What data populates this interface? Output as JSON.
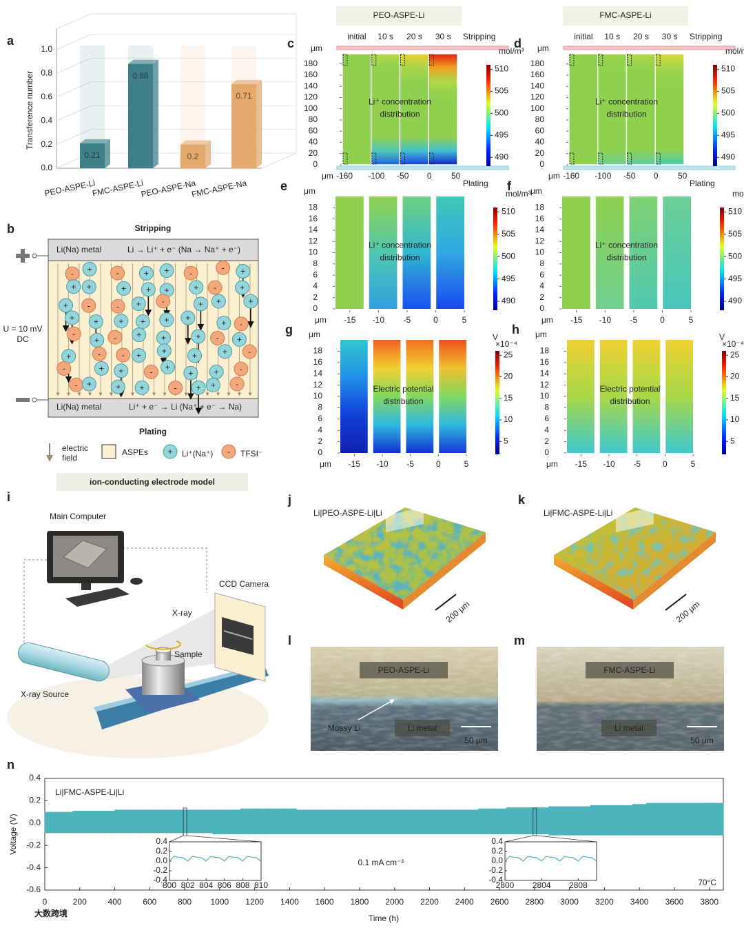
{
  "panel_a": {
    "label": "a",
    "type": "bar",
    "y_label": "Transference number",
    "categories": [
      "PEO-ASPE-Li",
      "FMC-ASPE-Li",
      "PEO-ASPE-Na",
      "FMC-ASPE-Na"
    ],
    "values": [
      0.21,
      0.88,
      0.2,
      0.71
    ],
    "colors": [
      "#3f8088",
      "#3f8088",
      "#e4a86c",
      "#e4a86c"
    ],
    "ylim": [
      0,
      1
    ],
    "yticks": [
      {
        "value": 0,
        "label": "0.0"
      },
      0.2,
      0.4,
      0.6,
      0.8,
      {
        "value": 1,
        "label": "1.0"
      }
    ]
  },
  "panel_b": {
    "label": "b",
    "stripping": "Stripping",
    "plating": "Plating",
    "top_electrode": "Li(Na) metal",
    "top_reaction": "Li → Li⁺ + e⁻ (Na → Na⁺ + e⁻)",
    "bottom_electrode": "Li(Na) metal",
    "bottom_reaction": "Li⁺ + e⁻ → Li (Na⁺ + e⁻ → Na)",
    "voltage": "U = 10 mV",
    "dc": "DC",
    "cation_sign": "+",
    "anion_sign": "-",
    "legend_field": [
      "electric",
      "field"
    ],
    "legend_aspe": "ASPEs",
    "legend_cation": "Li⁺(Na⁺)",
    "legend_anion": "TFSI⁻",
    "caption": "ion-conducting electrode model"
  },
  "maps": {
    "columns": [
      "PEO-ASPE-Li",
      "FMC-ASPE-Li"
    ],
    "times": [
      "initial",
      "10 s",
      "20 s",
      "30 s"
    ],
    "stripping": "Stripping",
    "plating": "Plating",
    "unit": "μm",
    "rows": [
      {
        "label": [
          "Li⁺ concentration",
          "distribution"
        ],
        "cbar_unit": "mol/m³",
        "cbar_lim": [
          488,
          511
        ],
        "cbar_ticks": [
          490,
          495,
          500,
          505,
          510
        ],
        "xlim": [
          -164,
          53
        ],
        "xticks": [
          -160,
          -100,
          -50,
          0,
          50
        ],
        "ylim": [
          0,
          198
        ],
        "yticks": [
          0,
          20,
          40,
          60,
          80,
          100,
          120,
          140,
          160,
          180
        ],
        "panels": [
          {
            "label": "c",
            "strips": [
              [
                "#8fd14f",
                "#8fd14f"
              ],
              [
                "#b5d845",
                "#8fd14f",
                "#8fd14f",
                "#8fd14f",
                "#8fd14f",
                "#8fd14f",
                "#8fd14f",
                "#50c8b8",
                "#2060e0"
              ],
              [
                "#e8d030",
                "#a8d648",
                "#8fd14f",
                "#8fd14f",
                "#8fd14f",
                "#8fd14f",
                "#8fd14f",
                "#40c0d0",
                "#1840e0"
              ],
              [
                "#e02010",
                "#f0a020",
                "#b0d848",
                "#8fd14f",
                "#8fd14f",
                "#8fd14f",
                "#8fd14f",
                "#40c0d0",
                "#1020d0"
              ]
            ]
          },
          {
            "label": "d",
            "strips": [
              [
                "#8fd14f",
                "#8fd14f"
              ],
              [
                "#9cd44c",
                "#8fd14f",
                "#8fd14f",
                "#8fd14f",
                "#8fd14f",
                "#8fd14f",
                "#8fd14f",
                "#70d090"
              ],
              [
                "#b0d848",
                "#8fd14f",
                "#8fd14f",
                "#8fd14f",
                "#8fd14f",
                "#8fd14f",
                "#8fd14f",
                "#60cca0"
              ],
              [
                "#d8d838",
                "#a0d44a",
                "#8fd14f",
                "#8fd14f",
                "#8fd14f",
                "#8fd14f",
                "#8fd14f",
                "#50c8b0"
              ]
            ]
          }
        ]
      },
      {
        "label": [
          "Li⁺ concentration",
          "distribution"
        ],
        "cbar_unit": "mol/m³",
        "cbar_lim": [
          488,
          511
        ],
        "cbar_ticks": [
          490,
          495,
          500,
          505,
          510
        ],
        "xlim": [
          -17.5,
          5
        ],
        "xticks": [
          -15,
          -10,
          -5,
          0,
          5
        ],
        "ylim": [
          0,
          20
        ],
        "yticks": [
          0,
          2,
          4,
          6,
          8,
          10,
          12,
          14,
          16,
          18
        ],
        "panels": [
          {
            "label": "e",
            "strips": [
              [
                "#8fd14f",
                "#8fd14f"
              ],
              [
                "#8fd14f",
                "#50c8b0",
                "#30a0e0"
              ],
              [
                "#70cf80",
                "#30b8d0",
                "#1a50f0"
              ],
              [
                "#40c8b8",
                "#30a8e0",
                "#1a48f0"
              ]
            ]
          },
          {
            "label": "f",
            "strips": [
              [
                "#8fd14f",
                "#8fd14f"
              ],
              [
                "#8fd14f",
                "#70d090"
              ],
              [
                "#80d270",
                "#50c8b0"
              ],
              [
                "#6cd094",
                "#48c6bc"
              ]
            ]
          }
        ]
      },
      {
        "label": [
          "Electric potential",
          "distribution"
        ],
        "cbar_unit": "V",
        "cbar_scale": "×10⁻⁴",
        "cbar_lim": [
          2,
          26
        ],
        "cbar_ticks": [
          5,
          10,
          15,
          20,
          25
        ],
        "xlim": [
          -17.5,
          5
        ],
        "xticks": [
          -15,
          -10,
          -5,
          0,
          5
        ],
        "ylim": [
          0,
          20
        ],
        "yticks": [
          0,
          2,
          4,
          6,
          8,
          10,
          12,
          14,
          16,
          18
        ],
        "panels": [
          {
            "label": "g",
            "strips": [
              [
                "#30c8d0",
                "#2090e8",
                "#1040d8",
                "#1020b0"
              ],
              [
                "#f06020",
                "#f0d030",
                "#80d860",
                "#30b8e0",
                "#1030d0"
              ],
              [
                "#f07020",
                "#f0d030",
                "#80d860",
                "#30b8e0",
                "#1030d0"
              ],
              [
                "#f05018",
                "#f0c030",
                "#80d860",
                "#30b8e0",
                "#1838d8"
              ]
            ]
          },
          {
            "label": "h",
            "strips": [
              [
                "#f0d030",
                "#a8d848",
                "#40c8d0"
              ],
              [
                "#f0d030",
                "#a8d848",
                "#40c8d0"
              ],
              [
                "#f0d030",
                "#a8d848",
                "#40c8d0"
              ],
              [
                "#f0d030",
                "#a8d848",
                "#40c8d0"
              ]
            ]
          }
        ]
      }
    ]
  },
  "panel_i": {
    "label": "i",
    "computer": "Main Computer",
    "camera": "CCD Camera",
    "xray": "X-ray",
    "sample": "Sample",
    "source": "X-ray Source"
  },
  "panel_j": {
    "label": "j",
    "title": "Li|PEO-ASPE-Li|Li",
    "scale": "200 μm"
  },
  "panel_k": {
    "label": "k",
    "title": "Li|FMC-ASPE-Li|Li",
    "scale": "200 μm"
  },
  "panel_l": {
    "label": "l",
    "title": "PEO-ASPE-Li",
    "mossy": "Mossy Li",
    "metal": "Li metal",
    "scale": "50 μm"
  },
  "panel_m": {
    "label": "m",
    "title": "FMC-ASPE-Li",
    "metal": "Li metal",
    "scale": "50 μm"
  },
  "panel_n": {
    "label": "n",
    "type": "line",
    "title": "Li|FMC-ASPE-Li|Li",
    "x_label": "Time (h)",
    "y_label": "Voltage (V)",
    "current": "0.1 mA cm⁻²",
    "temperature": "70°C",
    "color": "#4bb4bd",
    "xlim": [
      0,
      3880
    ],
    "xticks": [
      0,
      200,
      400,
      600,
      800,
      1000,
      1200,
      1400,
      1600,
      1800,
      2000,
      2200,
      2400,
      2600,
      2800,
      3000,
      3200,
      3400,
      3600,
      3800
    ],
    "ylim": [
      -0.6,
      0.4
    ],
    "yticks": [
      -0.6,
      -0.4,
      -0.2,
      {
        "value": 0,
        "label": "0.0"
      },
      0.2,
      0.4
    ],
    "x": [
      0,
      80,
      160,
      240,
      320,
      400,
      480,
      560,
      640,
      720,
      800,
      880,
      960,
      1040,
      1120,
      1200,
      1280,
      1360,
      1440,
      1520,
      1600,
      1680,
      1760,
      1840,
      1920,
      2000,
      2080,
      2160,
      2240,
      2320,
      2400,
      2480,
      2560,
      2640,
      2720,
      2800,
      2880,
      2960,
      3040,
      3120,
      3200,
      3280,
      3360,
      3440,
      3520,
      3600,
      3680,
      3760,
      3840
    ],
    "upper": [
      0.1,
      0.1,
      0.11,
      0.11,
      0.11,
      0.12,
      0.12,
      0.12,
      0.12,
      0.12,
      0.12,
      0.12,
      0.12,
      0.12,
      0.13,
      0.13,
      0.13,
      0.13,
      0.12,
      0.12,
      0.12,
      0.12,
      0.12,
      0.12,
      0.12,
      0.12,
      0.12,
      0.12,
      0.12,
      0.12,
      0.12,
      0.13,
      0.13,
      0.14,
      0.14,
      0.14,
      0.15,
      0.15,
      0.15,
      0.16,
      0.16,
      0.16,
      0.17,
      0.18,
      0.18,
      0.18,
      0.18,
      0.18,
      0.18
    ],
    "lower": [
      -0.09,
      -0.09,
      -0.09,
      -0.09,
      -0.09,
      -0.09,
      -0.09,
      -0.09,
      -0.09,
      -0.09,
      -0.09,
      -0.09,
      -0.1,
      -0.1,
      -0.1,
      -0.1,
      -0.1,
      -0.1,
      -0.1,
      -0.1,
      -0.1,
      -0.1,
      -0.1,
      -0.1,
      -0.1,
      -0.1,
      -0.1,
      -0.1,
      -0.1,
      -0.1,
      -0.1,
      -0.1,
      -0.1,
      -0.1,
      -0.1,
      -0.1,
      -0.11,
      -0.11,
      -0.11,
      -0.11,
      -0.11,
      -0.11,
      -0.11,
      -0.11,
      -0.11,
      -0.11,
      -0.11,
      -0.11,
      -0.11
    ],
    "insets": [
      {
        "xlim": [
          800,
          810
        ],
        "xticks": [
          800,
          802,
          804,
          806,
          808,
          810
        ],
        "ylim": [
          -0.4,
          0.4
        ],
        "yticks": [
          -0.4,
          -0.2,
          {
            "value": 0,
            "label": "0.0"
          },
          0.2,
          0.4
        ],
        "x": [
          800,
          800.5,
          801,
          801.5,
          802,
          802.5,
          803,
          803.5,
          804,
          804.5,
          805,
          805.5,
          806,
          806.5,
          807,
          807.5,
          808,
          808.5,
          809,
          809.5,
          810
        ],
        "values": [
          0,
          0.1,
          0.08,
          0.07,
          0,
          0.1,
          0.08,
          0.07,
          0,
          0.1,
          0.08,
          0.07,
          0,
          0.1,
          0.08,
          0.07,
          0,
          0.1,
          0.08,
          0.07,
          0
        ]
      },
      {
        "xlim": [
          2800,
          2810
        ],
        "xticks": [
          2800,
          2804,
          2808
        ],
        "ylim": [
          -0.4,
          0.4
        ],
        "yticks": [
          -0.4,
          -0.2,
          {
            "value": 0,
            "label": "0.0"
          },
          0.2,
          0.4
        ],
        "x": [
          2800,
          2800.5,
          2801,
          2801.5,
          2802,
          2802.5,
          2803,
          2803.5,
          2804,
          2804.5,
          2805,
          2805.5,
          2806,
          2806.5,
          2807,
          2807.5,
          2808,
          2808.5,
          2809,
          2809.5,
          2810
        ],
        "values": [
          0,
          0.1,
          0.08,
          0.07,
          0,
          0.1,
          0.08,
          0.07,
          0,
          0.1,
          0.08,
          0.07,
          0,
          0.1,
          0.08,
          0.07,
          0,
          0.1,
          0.08,
          0.07,
          0
        ]
      }
    ]
  },
  "watermark": "大数跨境"
}
